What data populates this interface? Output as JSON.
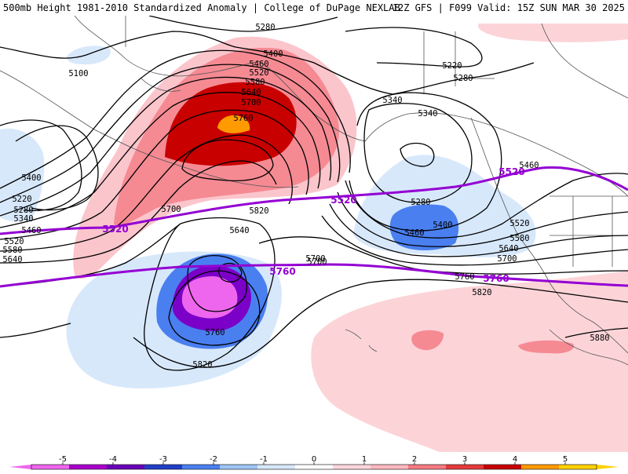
{
  "header": {
    "title_left": "500mb Height 1981-2010 Standardized Anomaly | College of DuPage NEXLAB",
    "title_right": "12Z GFS | F099 Valid: 15Z SUN MAR 30 2025"
  },
  "colorbar": {
    "ticks": [
      "-5",
      "-4",
      "-3",
      "-2",
      "-1",
      "0",
      "1",
      "2",
      "3",
      "4",
      "5"
    ],
    "colors": [
      "#ee66ee",
      "#aa00cc",
      "#6a00b8",
      "#1f3fc8",
      "#4a7ff0",
      "#9ec5f7",
      "#d7e8fb",
      "#ffffff",
      "#ffd6dc",
      "#fbb7bf",
      "#f47a82",
      "#e53a3a",
      "#c80000",
      "#ff9a00",
      "#ffd000"
    ]
  },
  "contour_labels": [
    "5280",
    "5400",
    "5460",
    "5520",
    "5580",
    "5640",
    "5700",
    "5760",
    "5100",
    "5220",
    "5280",
    "5340",
    "5340",
    "5220",
    "5280",
    "5340",
    "5400",
    "5460",
    "5520",
    "5580",
    "5640",
    "5700",
    "5640",
    "5700",
    "5760",
    "5820",
    "5760",
    "5820",
    "5280",
    "5400",
    "5460",
    "5520",
    "5580",
    "5640",
    "5700",
    "5820",
    "5880",
    "5460",
    "5700"
  ],
  "highlight_labels": [
    "5520",
    "5520",
    "5760",
    "5760",
    "5520"
  ],
  "colors": {
    "contour": "#000000",
    "highlight_contour": "#9400d3",
    "coast": "#555555"
  }
}
